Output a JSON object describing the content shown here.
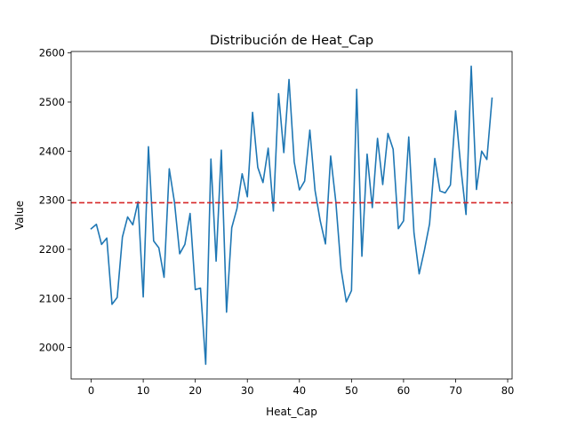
{
  "chart_data": {
    "type": "line",
    "title": "Distribución de Heat_Cap",
    "xlabel": "Heat_Cap",
    "ylabel": "Value",
    "xlim": [
      -3.85,
      80.85
    ],
    "ylim": [
      1936,
      2603
    ],
    "xticks": [
      0,
      10,
      20,
      30,
      40,
      50,
      60,
      70,
      80
    ],
    "yticks": [
      2000,
      2100,
      2200,
      2300,
      2400,
      2500,
      2600
    ],
    "grid": false,
    "legend": "none",
    "mean_line": {
      "value": 2295,
      "color": "#d62728",
      "style": "dashed"
    },
    "series": [
      {
        "color": "#1f77b4",
        "x": [
          0,
          1,
          2,
          3,
          4,
          5,
          6,
          7,
          8,
          9,
          10,
          11,
          12,
          13,
          14,
          15,
          16,
          17,
          18,
          19,
          20,
          21,
          22,
          23,
          24,
          25,
          26,
          27,
          28,
          29,
          30,
          31,
          32,
          33,
          34,
          35,
          36,
          37,
          38,
          39,
          40,
          41,
          42,
          43,
          44,
          45,
          46,
          47,
          48,
          49,
          50,
          51,
          52,
          53,
          54,
          55,
          56,
          57,
          58,
          59,
          60,
          61,
          62,
          63,
          64,
          65,
          66,
          67,
          68,
          69,
          70,
          71,
          72,
          73,
          74,
          75,
          76,
          77
        ],
        "values": [
          2242,
          2251,
          2210,
          2223,
          2088,
          2102,
          2225,
          2266,
          2250,
          2297,
          2103,
          2409,
          2217,
          2203,
          2143,
          2364,
          2296,
          2191,
          2210,
          2273,
          2118,
          2121,
          1966,
          2384,
          2176,
          2402,
          2072,
          2244,
          2283,
          2354,
          2307,
          2479,
          2367,
          2336,
          2406,
          2278,
          2517,
          2397,
          2546,
          2378,
          2321,
          2339,
          2443,
          2320,
          2258,
          2211,
          2390,
          2296,
          2160,
          2093,
          2116,
          2526,
          2186,
          2394,
          2285,
          2426,
          2332,
          2436,
          2404,
          2242,
          2258,
          2429,
          2234,
          2150,
          2198,
          2252,
          2385,
          2319,
          2315,
          2331,
          2482,
          2367,
          2271,
          2573,
          2322,
          2400,
          2383,
          2508
        ]
      }
    ]
  }
}
